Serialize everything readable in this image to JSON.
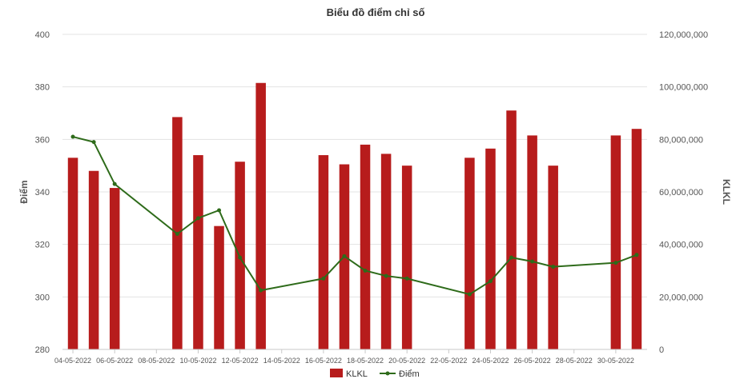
{
  "chart_data": {
    "type": "bar+line",
    "title": "Biểu đồ điểm chỉ số",
    "y_left_label": "Điểm",
    "y_right_label": "KLKL",
    "y_left_range": [
      280,
      400
    ],
    "y_left_ticks": [
      "280",
      "300",
      "320",
      "340",
      "360",
      "380",
      "400"
    ],
    "y_right_range": [
      0,
      120000000
    ],
    "y_right_ticks": [
      "0",
      "20,000,000",
      "40,000,000",
      "60,000,000",
      "80,000,000",
      "100,000,000",
      "120,000,000"
    ],
    "x_tick_labels": [
      "04-05-2022",
      "06-05-2022",
      "08-05-2022",
      "10-05-2022",
      "12-05-2022",
      "14-05-2022",
      "16-05-2022",
      "18-05-2022",
      "20-05-2022",
      "22-05-2022",
      "24-05-2022",
      "26-05-2022",
      "28-05-2022",
      "30-05-2022"
    ],
    "grid": true,
    "legend_position": "bottom",
    "categories": [
      "04-05-2022",
      "05-05-2022",
      "06-05-2022",
      "07-05-2022",
      "08-05-2022",
      "09-05-2022",
      "10-05-2022",
      "11-05-2022",
      "12-05-2022",
      "13-05-2022",
      "14-05-2022",
      "15-05-2022",
      "16-05-2022",
      "17-05-2022",
      "18-05-2022",
      "19-05-2022",
      "20-05-2022",
      "21-05-2022",
      "22-05-2022",
      "23-05-2022",
      "24-05-2022",
      "25-05-2022",
      "26-05-2022",
      "27-05-2022",
      "28-05-2022",
      "29-05-2022",
      "30-05-2022",
      "31-05-2022"
    ],
    "series": [
      {
        "name": "KLKL",
        "type": "bar",
        "axis": "right",
        "color": "#b71c1c",
        "values": [
          73000000,
          68000000,
          61500000,
          null,
          null,
          88500000,
          74000000,
          47000000,
          71500000,
          101500000,
          null,
          null,
          74000000,
          70500000,
          78000000,
          74500000,
          70000000,
          null,
          null,
          73000000,
          76500000,
          91000000,
          81500000,
          70000000,
          null,
          null,
          81500000,
          84000000
        ]
      },
      {
        "name": "Điểm",
        "type": "line",
        "axis": "left",
        "color": "#2e6b1a",
        "values": [
          361,
          359,
          343,
          null,
          null,
          324,
          330,
          333,
          315,
          302.5,
          null,
          null,
          307,
          315.5,
          310,
          308,
          307,
          null,
          null,
          301,
          306,
          315,
          313.5,
          311.5,
          null,
          null,
          313,
          316
        ]
      }
    ]
  }
}
